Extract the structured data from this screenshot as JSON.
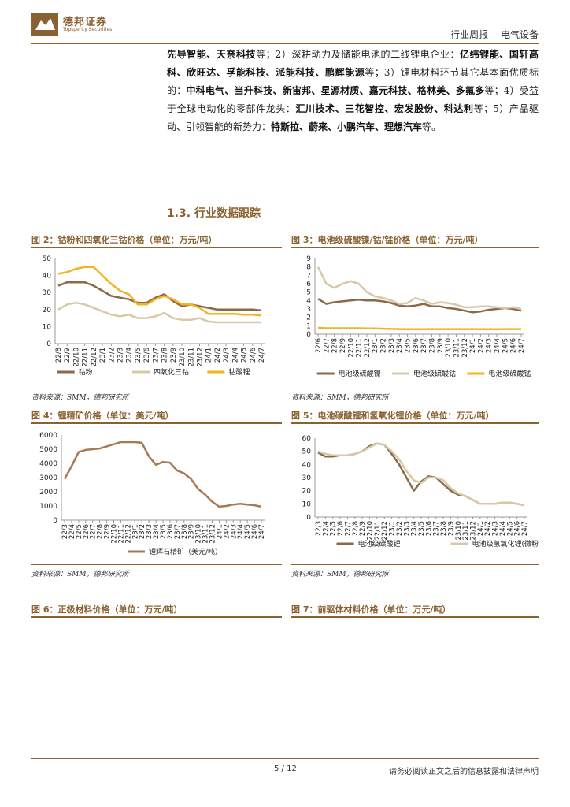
{
  "header": {
    "logo_cn": "德邦证券",
    "logo_en": "Topsperity Securities",
    "report_type": "行业周报",
    "industry": "电气设备"
  },
  "body_segments": [
    {
      "t": "先导智能、天奈科技",
      "b": true
    },
    {
      "t": "等；2）深耕动力及储能电池的二线锂电企业：",
      "b": false
    },
    {
      "t": "亿纬锂能、国轩高科、欣旺达、孚能科技、派能科技、鹏辉能源",
      "b": true
    },
    {
      "t": "等；3）锂电材料环节其它基本面优质标的：",
      "b": false
    },
    {
      "t": "中科电气、当升科技、新宙邦、星源材质、嘉元科技、格林美、多氟多",
      "b": true
    },
    {
      "t": "等；4）受益于全球电动化的零部件龙头：",
      "b": false
    },
    {
      "t": "汇川技术、三花智控、宏发股份、科达利",
      "b": true
    },
    {
      "t": "等；5）产品驱动、引领智能的新势力：",
      "b": false
    },
    {
      "t": "特斯拉、蔚来、小鹏汽车、理想汽车",
      "b": true
    },
    {
      "t": "等。",
      "b": false
    }
  ],
  "section_title": "1.3. 行业数据跟踪",
  "figures": {
    "fig2": {
      "title": "图 2：钴粉和四氧化三钴价格（单位：万元/吨）",
      "source": "资料来源：SMM，德邦研究所"
    },
    "fig3": {
      "title": "图 3：电池级硫酸镍/钴/锰价格（单位：万元/吨）",
      "source": "资料来源：SMM，德邦研究所"
    },
    "fig4": {
      "title": "图 4：锂精矿价格（单位：美元/吨）",
      "source": "资料来源：SMM，德邦研究所"
    },
    "fig5": {
      "title": "图 5：电池碳酸锂和氢氧化锂价格（单位：万元/吨）",
      "source": "资料来源：SMM，德邦研究所"
    },
    "fig6": {
      "title": "图 6：正极材料价格（单位：万元/吨）"
    },
    "fig7": {
      "title": "图 7：前驱体材料价格（单位：万元/吨）"
    }
  },
  "footer": {
    "page": "5 / 12",
    "disclaimer": "请务必阅读正文之后的信息披露和法律声明"
  },
  "chart_data": [
    {
      "id": "fig2",
      "type": "line",
      "categories": [
        "22/8",
        "22/9",
        "22/10",
        "22/11",
        "22/12",
        "23/1",
        "23/2",
        "23/3",
        "23/4",
        "23/5",
        "23/6",
        "23/7",
        "23/8",
        "23/9",
        "23/10",
        "23/11",
        "23/12",
        "24/1",
        "24/2",
        "24/3",
        "24/4",
        "24/5",
        "24/6",
        "24/7"
      ],
      "ylim": [
        0,
        50
      ],
      "yticks": [
        0,
        10,
        20,
        30,
        40,
        50
      ],
      "grid": false,
      "legend": "bottom",
      "series": [
        {
          "name": "钴粉",
          "color": "#8B6A4A",
          "values": [
            34,
            36,
            36,
            36,
            34,
            31,
            28,
            27,
            26,
            24,
            24,
            27,
            29,
            25,
            22,
            23,
            22,
            21,
            20,
            20,
            20,
            20,
            20,
            19.5
          ]
        },
        {
          "name": "四氧化三钴",
          "color": "#D8C8A8",
          "values": [
            20,
            23,
            24,
            23,
            21,
            19,
            17,
            16,
            17,
            15,
            15,
            16,
            18,
            15,
            14,
            14,
            15,
            13,
            12.5,
            12.5,
            12.5,
            12.5,
            12.5,
            12.5
          ]
        },
        {
          "name": "钴酸锂",
          "color": "#F2B51E",
          "values": [
            41,
            42,
            44,
            45,
            45,
            40,
            35,
            31,
            29,
            23,
            23,
            26,
            28,
            26,
            23,
            23,
            21,
            17.5,
            17.5,
            17.5,
            17.5,
            17,
            17,
            16.5
          ]
        }
      ]
    },
    {
      "id": "fig3",
      "type": "line",
      "categories": [
        "22/6",
        "22/7",
        "22/8",
        "22/9",
        "22/10",
        "22/11",
        "22/12",
        "23/1",
        "23/2",
        "23/3",
        "23/4",
        "23/5",
        "23/6",
        "23/7",
        "23/8",
        "23/9",
        "23/10",
        "23/11",
        "23/12",
        "24/1",
        "24/2",
        "24/3",
        "24/4",
        "24/5",
        "24/6",
        "24/7"
      ],
      "ylim": [
        0,
        9
      ],
      "yticks": [
        0,
        1,
        2,
        3,
        4,
        5,
        6,
        7,
        8,
        9
      ],
      "grid": false,
      "legend": "bottom",
      "series": [
        {
          "name": "电池级硫酸镍",
          "color": "#8B6A4A",
          "values": [
            4.2,
            3.6,
            3.8,
            3.9,
            4.0,
            4.1,
            4.0,
            4.0,
            3.9,
            3.7,
            3.4,
            3.3,
            3.4,
            3.6,
            3.3,
            3.3,
            3.1,
            3.0,
            2.8,
            2.6,
            2.7,
            2.9,
            3.0,
            3.1,
            3.0,
            2.8
          ]
        },
        {
          "name": "电池级硫酸钴",
          "color": "#D8C8A8",
          "values": [
            8.0,
            6.0,
            5.5,
            6.0,
            6.3,
            6.0,
            5.0,
            4.5,
            4.3,
            4.0,
            3.6,
            3.7,
            4.3,
            4.0,
            3.6,
            3.8,
            3.7,
            3.5,
            3.2,
            3.2,
            3.3,
            3.3,
            3.2,
            3.1,
            3.2,
            3.0
          ]
        },
        {
          "name": "电池级硫酸锰",
          "color": "#F2B51E",
          "values": [
            0.75,
            0.7,
            0.7,
            0.7,
            0.7,
            0.7,
            0.68,
            0.68,
            0.65,
            0.62,
            0.6,
            0.58,
            0.58,
            0.58,
            0.6,
            0.6,
            0.6,
            0.6,
            0.6,
            0.6,
            0.58,
            0.58,
            0.58,
            0.6,
            0.6,
            0.6
          ]
        }
      ]
    },
    {
      "id": "fig4",
      "type": "line",
      "categories": [
        "22/3",
        "22/4",
        "22/5",
        "22/6",
        "22/7",
        "22/8",
        "22/9",
        "22/10",
        "22/11",
        "22/12",
        "23/1",
        "23/2",
        "23/3",
        "23/4",
        "23/5",
        "23/6",
        "23/7",
        "23/8",
        "23/9",
        "23/10",
        "23/11",
        "23/12",
        "24/1",
        "24/2",
        "24/3",
        "24/4",
        "24/5",
        "24/6",
        "24/7"
      ],
      "ylim": [
        0,
        6000
      ],
      "yticks": [
        0,
        1000,
        2000,
        3000,
        4000,
        5000,
        6000
      ],
      "grid": false,
      "legend": "bottom",
      "series": [
        {
          "name": "锂辉石精矿（美元/吨）",
          "color": "#A87A52",
          "values": [
            2900,
            3800,
            4800,
            4950,
            5000,
            5050,
            5200,
            5350,
            5500,
            5500,
            5500,
            5450,
            4500,
            3900,
            4100,
            4050,
            3500,
            3300,
            2900,
            2200,
            1800,
            1300,
            950,
            1000,
            1100,
            1150,
            1100,
            1050,
            950
          ]
        }
      ]
    },
    {
      "id": "fig5",
      "type": "line",
      "categories": [
        "22/3",
        "22/4",
        "22/5",
        "22/6",
        "22/7",
        "22/8",
        "22/9",
        "22/10",
        "22/11",
        "22/12",
        "23/1",
        "23/2",
        "23/3",
        "23/4",
        "23/5",
        "23/6",
        "23/7",
        "23/8",
        "23/9",
        "23/10",
        "23/11",
        "23/12",
        "24/1",
        "24/2",
        "24/3",
        "24/4",
        "24/5",
        "24/6",
        "24/7"
      ],
      "ylim": [
        0,
        60
      ],
      "yticks": [
        0,
        10,
        20,
        30,
        40,
        50,
        60
      ],
      "grid": false,
      "legend": "bottom",
      "series": [
        {
          "name": "电池级碳酸锂",
          "color": "#8B6A4A",
          "values": [
            49,
            46,
            46,
            47,
            47,
            48,
            50,
            54,
            56,
            55,
            48,
            40,
            30,
            20,
            27,
            31,
            30,
            25,
            20,
            17,
            16,
            13,
            10,
            10,
            10,
            11,
            11,
            10,
            9
          ]
        },
        {
          "name": "电池级氢氧化锂(微粉)",
          "color": "#D8C8A8",
          "values": [
            50,
            48,
            47,
            47,
            47,
            48,
            50,
            53,
            56,
            55,
            50,
            44,
            35,
            28,
            26,
            30,
            30,
            28,
            22,
            18,
            16,
            13,
            10,
            10,
            10,
            11,
            11,
            10,
            9
          ]
        }
      ]
    }
  ]
}
